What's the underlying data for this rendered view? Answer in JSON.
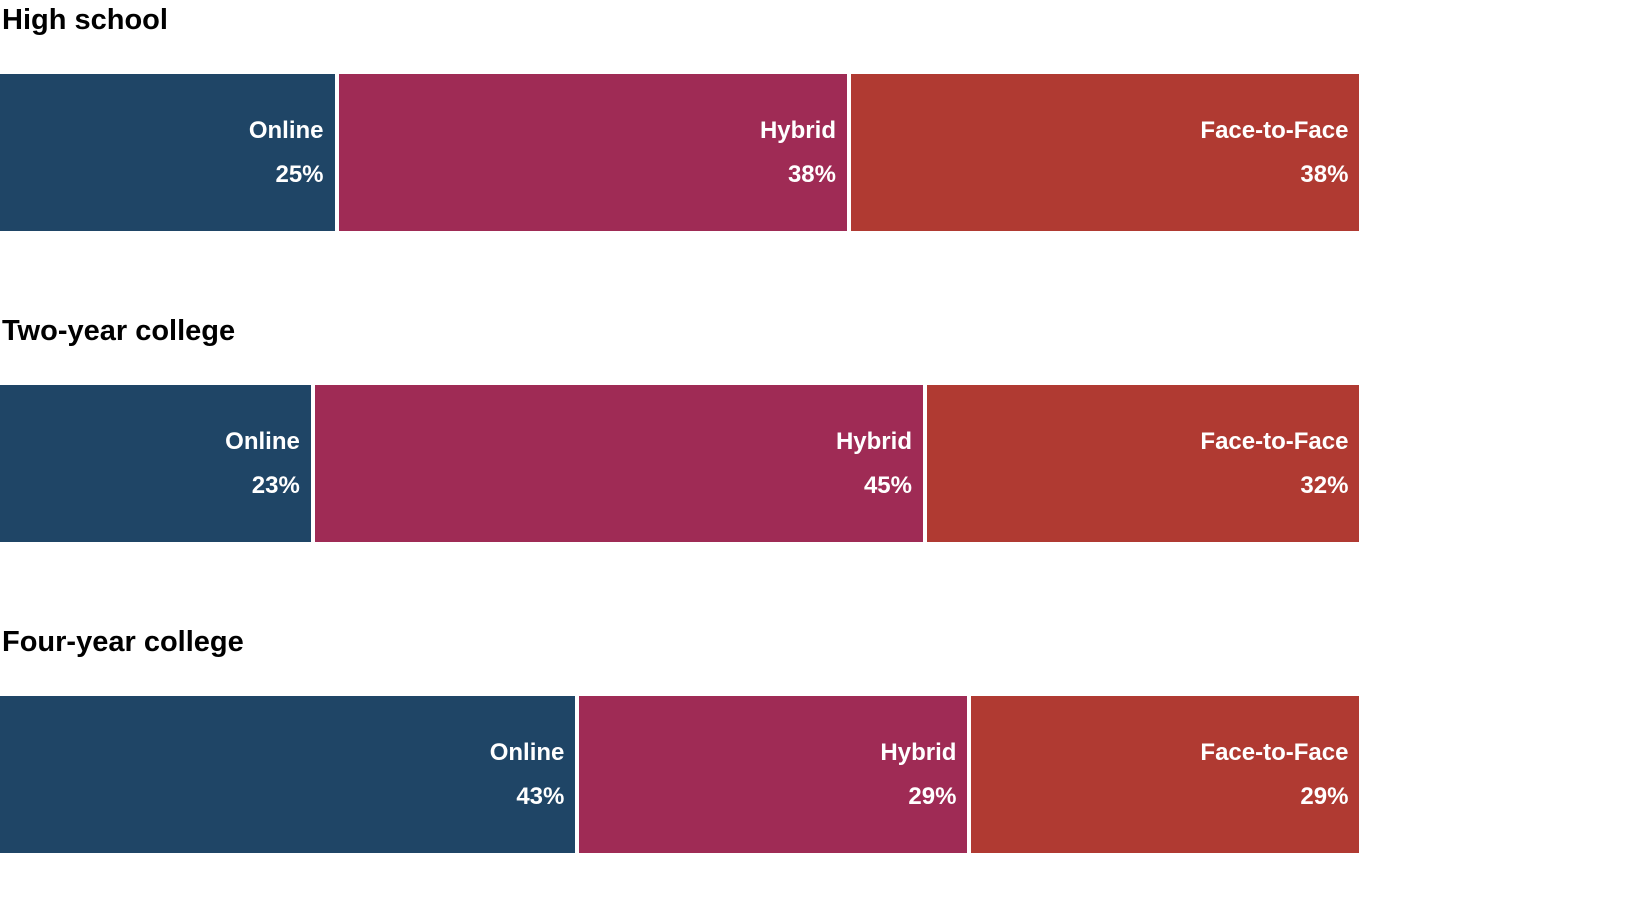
{
  "chart_data": {
    "type": "bar",
    "subtype": "horizontal-stacked-100pct",
    "title": "",
    "xlabel": "",
    "ylabel": "",
    "legend_position": "none",
    "grid": false,
    "axes_visible": false,
    "value_unit": "%",
    "series_labels": [
      "Online",
      "Hybrid",
      "Face-to-Face"
    ],
    "colors": {
      "Online": "#1F4566",
      "Hybrid": "#9F2B55",
      "Face-to-Face": "#B03A32",
      "label_text": "#FFFFFF",
      "title_text": "#000000",
      "background": "#FFFFFF"
    },
    "rows": [
      {
        "category": "High school",
        "segments": [
          {
            "label": "Online",
            "value": 25,
            "display": "25%"
          },
          {
            "label": "Hybrid",
            "value": 38,
            "display": "38%"
          },
          {
            "label": "Face-to-Face",
            "value": 38,
            "display": "38%"
          }
        ]
      },
      {
        "category": "Two-year college",
        "segments": [
          {
            "label": "Online",
            "value": 23,
            "display": "23%"
          },
          {
            "label": "Hybrid",
            "value": 45,
            "display": "45%"
          },
          {
            "label": "Face-to-Face",
            "value": 32,
            "display": "32%"
          }
        ]
      },
      {
        "category": "Four-year college",
        "segments": [
          {
            "label": "Online",
            "value": 43,
            "display": "43%"
          },
          {
            "label": "Hybrid",
            "value": 29,
            "display": "29%"
          },
          {
            "label": "Face-to-Face",
            "value": 29,
            "display": "29%"
          }
        ]
      }
    ]
  }
}
